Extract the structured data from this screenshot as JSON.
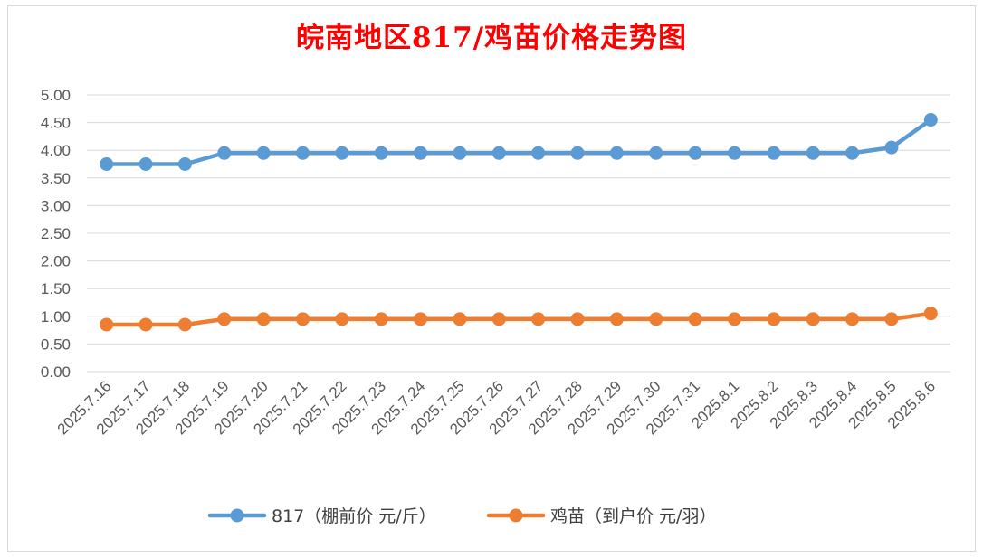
{
  "chart_data": {
    "type": "line",
    "title": "皖南地区817/鸡苗价格走势图",
    "categories": [
      "2025.7.16",
      "2025.7.17",
      "2025.7.18",
      "2025.7.19",
      "2025.7.20",
      "2025.7.21",
      "2025.7.22",
      "2025.7.23",
      "2025.7.24",
      "2025.7.25",
      "2025.7.26",
      "2025.7.27",
      "2025.7.28",
      "2025.7.29",
      "2025.7.30",
      "2025.7.31",
      "2025.8.1",
      "2025.8.2",
      "2025.8.3",
      "2025.8.4",
      "2025.8.5",
      "2025.8.6"
    ],
    "y_ticks": [
      "0.00",
      "0.50",
      "1.00",
      "1.50",
      "2.00",
      "2.50",
      "3.00",
      "3.50",
      "4.00",
      "4.50",
      "5.00"
    ],
    "ylim": [
      0,
      5
    ],
    "grid": true,
    "legend_position": "bottom",
    "series": [
      {
        "name": "817（棚前价 元/斤）",
        "color": "#5b9bd5",
        "values": [
          3.75,
          3.75,
          3.75,
          3.95,
          3.95,
          3.95,
          3.95,
          3.95,
          3.95,
          3.95,
          3.95,
          3.95,
          3.95,
          3.95,
          3.95,
          3.95,
          3.95,
          3.95,
          3.95,
          3.95,
          4.05,
          4.55
        ]
      },
      {
        "name": "鸡苗（到户价 元/羽）",
        "color": "#ed7d31",
        "values": [
          0.85,
          0.85,
          0.85,
          0.95,
          0.95,
          0.95,
          0.95,
          0.95,
          0.95,
          0.95,
          0.95,
          0.95,
          0.95,
          0.95,
          0.95,
          0.95,
          0.95,
          0.95,
          0.95,
          0.95,
          0.95,
          1.05
        ]
      }
    ]
  }
}
